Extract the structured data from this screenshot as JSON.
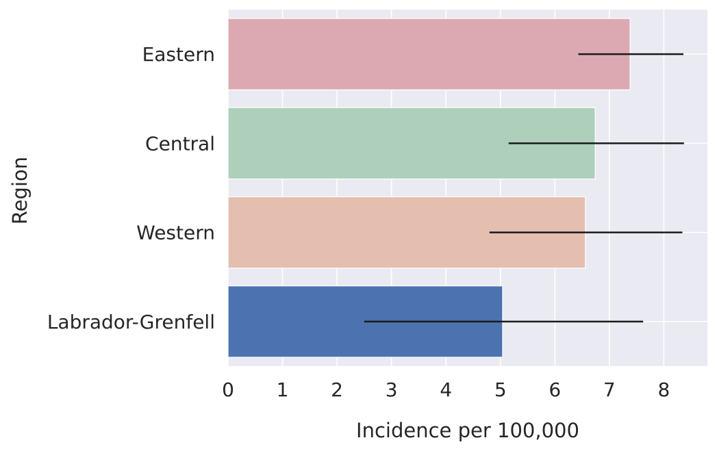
{
  "chart_data": {
    "type": "bar",
    "orientation": "horizontal",
    "categories": [
      "Eastern",
      "Central",
      "Western",
      "Labrador-Grenfell"
    ],
    "values": [
      7.38,
      6.74,
      6.56,
      5.04
    ],
    "error_low": [
      6.43,
      5.15,
      4.8,
      2.5
    ],
    "error_high": [
      8.36,
      8.37,
      8.34,
      7.62
    ],
    "colors": [
      "#dca9b2",
      "#aecfba",
      "#e4bfb0",
      "#4c72b0"
    ],
    "xlabel": "Incidence per 100,000",
    "ylabel": "Region",
    "xlim": [
      0,
      8.8
    ],
    "xticks": [
      "0",
      "1",
      "2",
      "3",
      "4",
      "5",
      "6",
      "7",
      "8"
    ],
    "grid": true,
    "style": "seaborn-darkgrid",
    "background_color": "#eaeaf2",
    "grid_color": "#ffffff",
    "errorbar_color": "#1a1a1a"
  }
}
